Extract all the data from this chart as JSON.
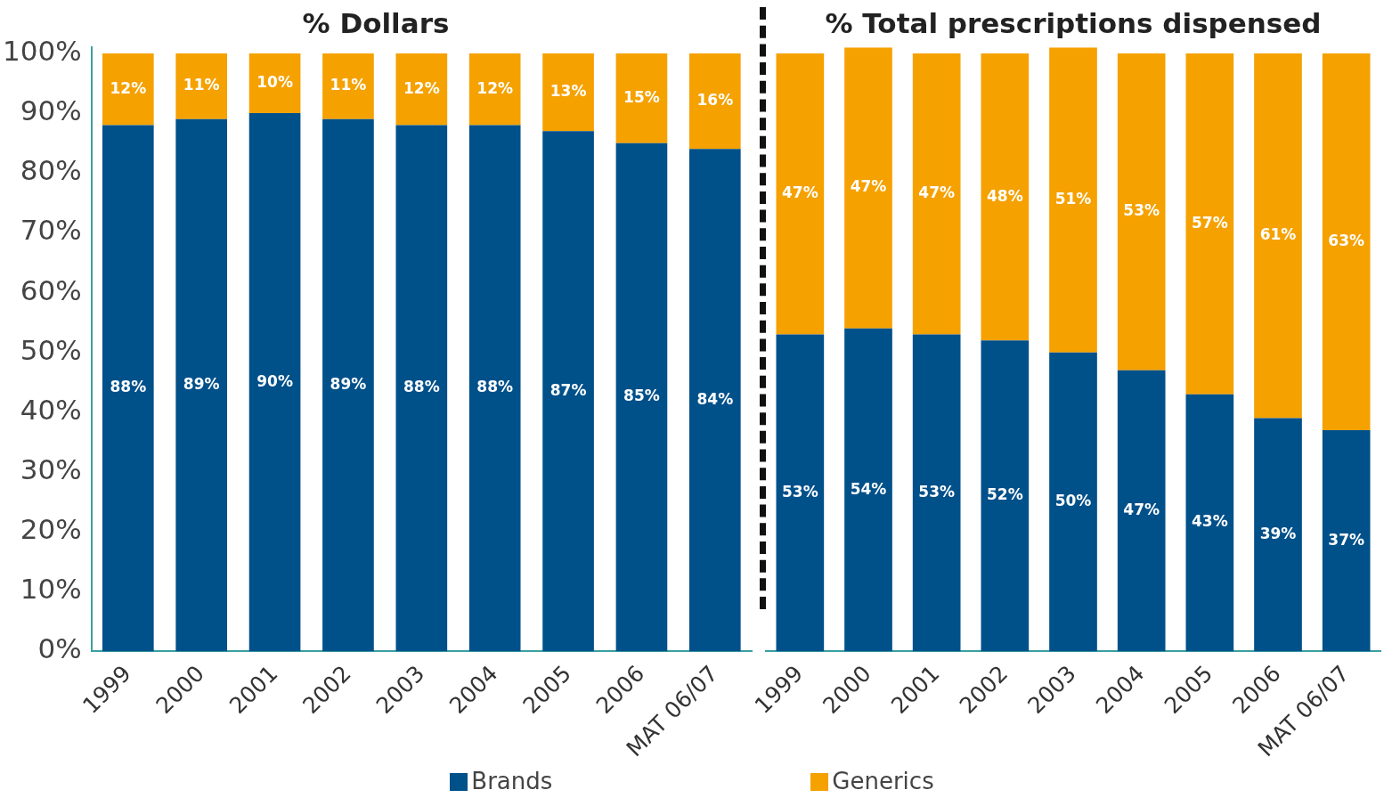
{
  "chart_data": [
    {
      "type": "bar",
      "title": "% Dollars",
      "stacked": true,
      "categories": [
        "1999",
        "2000",
        "2001",
        "2002",
        "2003",
        "2004",
        "2005",
        "2006",
        "MAT 06/07"
      ],
      "ylim": [
        0,
        101
      ],
      "yticks": [
        {
          "value": 0,
          "label": "0%"
        },
        {
          "value": 10,
          "label": "10%"
        },
        {
          "value": 20,
          "label": "20%"
        },
        {
          "value": 30,
          "label": "30%"
        },
        {
          "value": 40,
          "label": "40%"
        },
        {
          "value": 50,
          "label": "50%"
        },
        {
          "value": 60,
          "label": "60%"
        },
        {
          "value": 70,
          "label": "70%"
        },
        {
          "value": 80,
          "label": "80%"
        },
        {
          "value": 90,
          "label": "90%"
        },
        {
          "value": 100,
          "label": "100%"
        }
      ],
      "grid": false,
      "legend": "bottom",
      "series": [
        {
          "name": "Brands",
          "color": "#00508a",
          "values": [
            88,
            89,
            90,
            89,
            88,
            88,
            87,
            85,
            84
          ],
          "value_labels": [
            "88%",
            "89%",
            "90%",
            "89%",
            "88%",
            "88%",
            "87%",
            "85%",
            "84%"
          ]
        },
        {
          "name": "Generics",
          "color": "#f5a100",
          "values": [
            12,
            11,
            10,
            11,
            12,
            12,
            13,
            15,
            16
          ],
          "value_labels": [
            "12%",
            "11%",
            "10%",
            "11%",
            "12%",
            "12%",
            "13%",
            "15%",
            "16%"
          ]
        }
      ]
    },
    {
      "type": "bar",
      "title": "% Total prescriptions dispensed",
      "stacked": true,
      "categories": [
        "1999",
        "2000",
        "2001",
        "2002",
        "2003",
        "2004",
        "2005",
        "2006",
        "MAT 06/07"
      ],
      "ylim": [
        0,
        101
      ],
      "tick_labels": "x",
      "grid": false,
      "series": [
        {
          "color": "#00508a",
          "values": [
            53,
            54,
            53,
            52,
            50,
            47,
            43,
            39,
            37
          ],
          "value_labels": [
            "53%",
            "54%",
            "53%",
            "52%",
            "50%",
            "47%",
            "43%",
            "39%",
            "37%"
          ]
        },
        {
          "color": "#f5a100",
          "values": [
            47,
            47,
            47,
            48,
            51,
            53,
            57,
            61,
            63
          ],
          "value_labels": [
            "47%",
            "47%",
            "47%",
            "48%",
            "51%",
            "53%",
            "57%",
            "61%",
            "63%"
          ]
        }
      ]
    }
  ]
}
